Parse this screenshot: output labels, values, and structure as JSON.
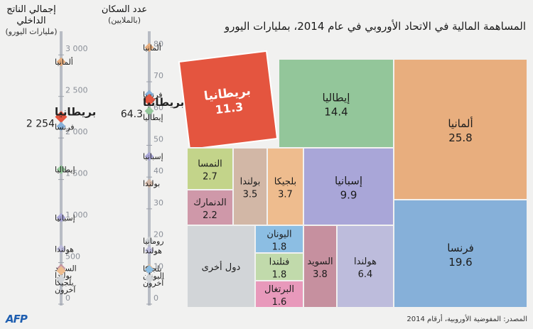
{
  "title": "المساهمة المالية في الاتحاد الأوروبي في عام 2014، بمليارات اليورو",
  "source": "المصدر: المفوضية الأوروبية، أرقام 2014",
  "logo": "AFP",
  "colors": {
    "uk": "#e4553f",
    "uk_selected": "#e4553f",
    "highlight_text": "#ffffff"
  },
  "chart_data": [
    {
      "type": "treemap",
      "title": "المساهمة المالية في الاتحاد الأوروبي في عام 2014، بمليارات اليورو",
      "unit": "مليار يورو",
      "items": [
        {
          "name": "ألمانيا",
          "value": "25.8",
          "color": "#e8ae7e"
        },
        {
          "name": "فرنسا",
          "value": "19.6",
          "color": "#86b0d9"
        },
        {
          "name": "إيطاليا",
          "value": "14.4",
          "color": "#93c69a"
        },
        {
          "name": "بريطانيا",
          "value": "11.3",
          "color": "#e4553f"
        },
        {
          "name": "إسبانيا",
          "value": "9.9",
          "color": "#a9a6d8"
        },
        {
          "name": "هولندا",
          "value": "6.4",
          "color": "#bdbcdc"
        },
        {
          "name": "السويد",
          "value": "3.8",
          "color": "#c6909f"
        },
        {
          "name": "بلجيكا",
          "value": "3.7",
          "color": "#eebc8e"
        },
        {
          "name": "بولندا",
          "value": "3.5",
          "color": "#d2b7a6"
        },
        {
          "name": "النمسا",
          "value": "2.7",
          "color": "#c3d48a"
        },
        {
          "name": "الدنمارك",
          "value": "2.2",
          "color": "#cf98a9"
        },
        {
          "name": "اليونان",
          "value": "1.8",
          "color": "#8cbee3"
        },
        {
          "name": "فنلندا",
          "value": "1.8",
          "color": "#c1daab"
        },
        {
          "name": "البرتغال",
          "value": "1.6",
          "color": "#e899bb"
        },
        {
          "name": "دول أخرى",
          "value": "",
          "color": "#d2d5d8"
        }
      ]
    },
    {
      "type": "scatter",
      "title": "عدد السكان",
      "subtitle": "(بالملايين)",
      "ylim": [
        0,
        85
      ],
      "ticks": [
        0,
        10,
        20,
        30,
        40,
        50,
        60,
        70,
        80
      ],
      "points": [
        {
          "label": "ألمانيا",
          "value": 80.8,
          "color": "#e8ae7e"
        },
        {
          "label": "فرنسا",
          "value": 66.0,
          "color": "#86b0d9"
        },
        {
          "label": "بريطانيا",
          "value": 64.3,
          "color": "#e4553f",
          "highlight": true,
          "value_label": "64.3"
        },
        {
          "label": "إيطاليا",
          "value": 60.8,
          "color": "#93c69a"
        },
        {
          "label": "إسبانيا",
          "value": 46.5,
          "color": "#a9a6d8"
        },
        {
          "label": "بولندا",
          "value": 38.0,
          "color": "#d2b7a6"
        },
        {
          "label": "رومانيا",
          "value": 19.9,
          "color": "#d2d5d8"
        },
        {
          "label": "هولندا",
          "value": 16.9,
          "color": "#bdbcdc"
        },
        {
          "label": "بلجيكا",
          "value": 11.2,
          "color": "#eebc8e"
        },
        {
          "label": "اليونان",
          "value": 10.9,
          "color": "#8cbee3"
        },
        {
          "label": "آخرون",
          "value": 8.0,
          "color": "#d2d5d8"
        }
      ]
    },
    {
      "type": "scatter",
      "title": "إجمالي الناتج الداخلي",
      "subtitle": "(مليارات اليورو)",
      "ylim": [
        0,
        3250
      ],
      "ticks": [
        0,
        500,
        1000,
        1500,
        2000,
        2500,
        3000
      ],
      "tick_labels": [
        "0",
        "500",
        "1 000",
        "1 500",
        "2 000",
        "2 500",
        "3 000"
      ],
      "points": [
        {
          "label": "ألمانيا",
          "value": 2916,
          "color": "#e8ae7e"
        },
        {
          "label": "بريطانيا",
          "value": 2254,
          "color": "#e4553f",
          "highlight": true,
          "value_label": "2 254"
        },
        {
          "label": "فرنسا",
          "value": 2140,
          "color": "#86b0d9"
        },
        {
          "label": "إيطاليا",
          "value": 1620,
          "color": "#93c69a"
        },
        {
          "label": "إسبانيا",
          "value": 1041,
          "color": "#a9a6d8"
        },
        {
          "label": "هولندا",
          "value": 663,
          "color": "#bdbcdc"
        },
        {
          "label": "السويد",
          "value": 430,
          "color": "#c6909f"
        },
        {
          "label": "بولندا",
          "value": 410,
          "color": "#d2b7a6"
        },
        {
          "label": "بلجيكا",
          "value": 400,
          "color": "#eebc8e"
        },
        {
          "label": "آخرون",
          "value": 300,
          "color": "#d2d5d8"
        }
      ]
    }
  ]
}
